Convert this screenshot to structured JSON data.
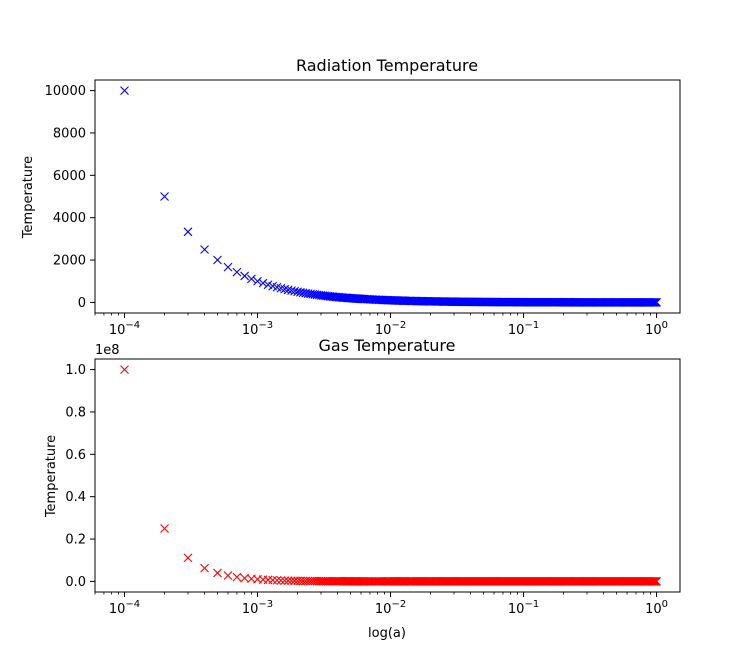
{
  "chart_data": [
    {
      "type": "scatter",
      "title": "Radiation Temperature",
      "xlabel": "",
      "ylabel": "Temperature",
      "xscale": "log",
      "xlim": [
        6e-05,
        1.5
      ],
      "ylim": [
        -500,
        10500
      ],
      "xticks": [
        "10^-4",
        "10^-3",
        "10^-2",
        "10^-1",
        "10^0"
      ],
      "yticks": [
        "0",
        "2000",
        "4000",
        "6000",
        "8000",
        "10000"
      ],
      "offset_text": "",
      "marker": "x",
      "color": "#0000ff",
      "series": [
        {
          "relation": "T = 1 / a",
          "x_start": 0.0001,
          "x_end": 1.0,
          "x_step": 0.0001,
          "y_at_x_start": 10000,
          "y_at_x_end": 1
        }
      ]
    },
    {
      "type": "scatter",
      "title": "Gas Temperature",
      "xlabel": "log(a)",
      "ylabel": "Temperature",
      "xscale": "log",
      "xlim": [
        6e-05,
        1.5
      ],
      "ylim": [
        -0.05,
        1.05
      ],
      "xticks": [
        "10^-4",
        "10^-3",
        "10^-2",
        "10^-1",
        "10^0"
      ],
      "yticks": [
        "0.0",
        "0.2",
        "0.4",
        "0.6",
        "0.8",
        "1.0"
      ],
      "offset_text": "1e8",
      "marker": "x",
      "color": "#ff0000",
      "series": [
        {
          "relation": "T = 1 / a^2",
          "x_start": 0.0001,
          "x_end": 1.0,
          "x_step": 0.0001,
          "y_at_x_start": 1.0,
          "y_at_x_end": 1e-08
        }
      ]
    }
  ]
}
